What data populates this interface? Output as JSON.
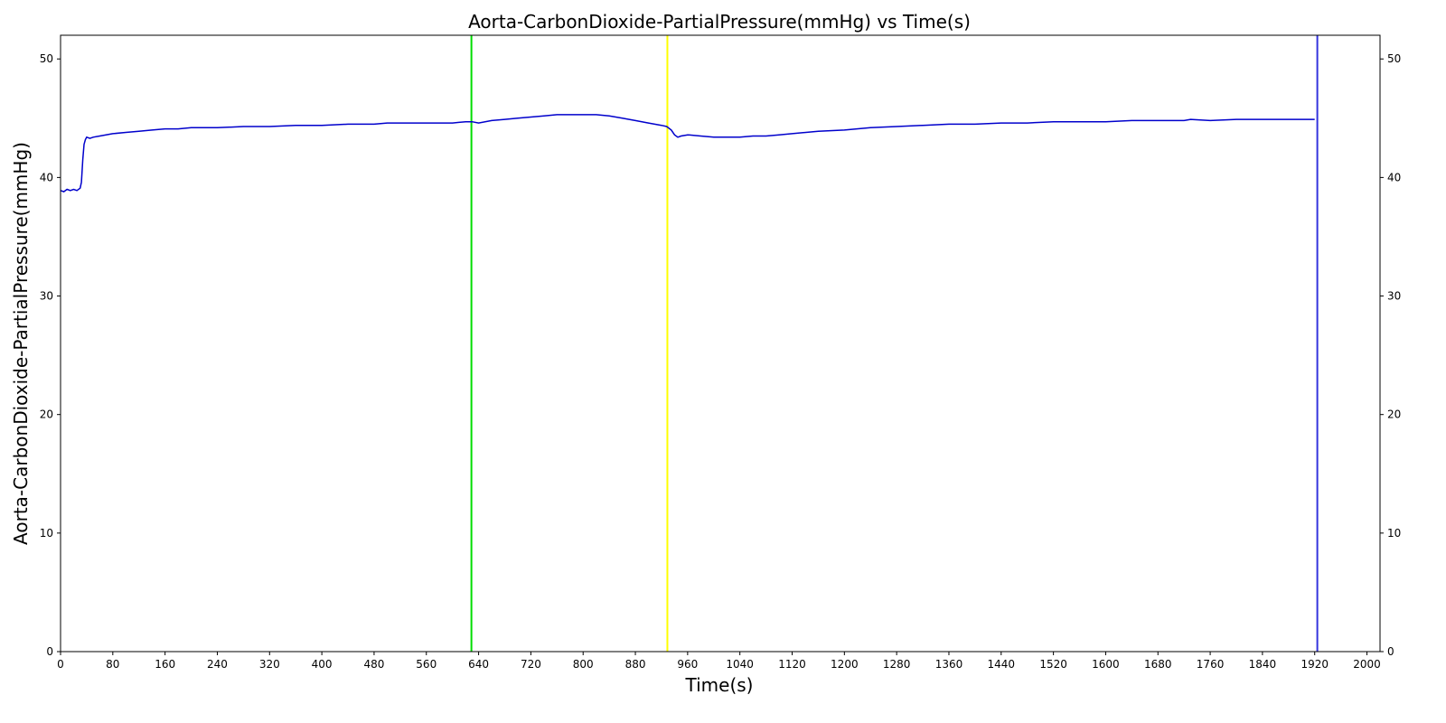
{
  "chart_data": {
    "type": "line",
    "title": "Aorta-CarbonDioxide-PartialPressure(mmHg) vs Time(s)",
    "xlabel": "Time(s)",
    "ylabel": "Aorta-CarbonDioxide-PartialPressure(mmHg)",
    "xlim": [
      0,
      2020
    ],
    "ylim": [
      0,
      52
    ],
    "x_ticks": [
      0,
      80,
      160,
      240,
      320,
      400,
      480,
      560,
      640,
      720,
      800,
      880,
      960,
      1040,
      1120,
      1200,
      1280,
      1360,
      1440,
      1520,
      1600,
      1680,
      1760,
      1840,
      1920,
      2000
    ],
    "y_ticks": [
      0,
      10,
      20,
      30,
      40,
      50
    ],
    "y_right_ticks": [
      0,
      10,
      20,
      30,
      40,
      50
    ],
    "grid": false,
    "series": [
      {
        "color": "#0000cc",
        "x": [
          0,
          5,
          10,
          15,
          20,
          25,
          30,
          32,
          34,
          36,
          38,
          40,
          45,
          50,
          60,
          80,
          100,
          120,
          140,
          160,
          180,
          200,
          240,
          280,
          320,
          360,
          400,
          440,
          480,
          500,
          520,
          560,
          600,
          620,
          630,
          640,
          660,
          680,
          700,
          720,
          740,
          760,
          780,
          800,
          820,
          840,
          860,
          880,
          900,
          920,
          928,
          935,
          940,
          945,
          950,
          960,
          980,
          1000,
          1020,
          1040,
          1060,
          1080,
          1100,
          1120,
          1160,
          1200,
          1240,
          1280,
          1320,
          1360,
          1400,
          1440,
          1480,
          1520,
          1560,
          1600,
          1640,
          1680,
          1720,
          1730,
          1760,
          1800,
          1840,
          1880,
          1920
        ],
        "y": [
          38.9,
          38.8,
          39.0,
          38.9,
          39.0,
          38.9,
          39.1,
          39.6,
          41.5,
          42.8,
          43.2,
          43.4,
          43.3,
          43.4,
          43.5,
          43.7,
          43.8,
          43.9,
          44.0,
          44.1,
          44.1,
          44.2,
          44.2,
          44.3,
          44.3,
          44.4,
          44.4,
          44.5,
          44.5,
          44.6,
          44.6,
          44.6,
          44.6,
          44.7,
          44.7,
          44.6,
          44.8,
          44.9,
          45.0,
          45.1,
          45.2,
          45.3,
          45.3,
          45.3,
          45.3,
          45.2,
          45.0,
          44.8,
          44.6,
          44.4,
          44.3,
          44.0,
          43.6,
          43.4,
          43.5,
          43.6,
          43.5,
          43.4,
          43.4,
          43.4,
          43.5,
          43.5,
          43.6,
          43.7,
          43.9,
          44.0,
          44.2,
          44.3,
          44.4,
          44.5,
          44.5,
          44.6,
          44.6,
          44.7,
          44.7,
          44.7,
          44.8,
          44.8,
          44.8,
          44.9,
          44.8,
          44.9,
          44.9,
          44.9,
          44.9
        ]
      }
    ],
    "vertical_lines": [
      {
        "x": 629,
        "color": "#00dd00"
      },
      {
        "x": 929,
        "color": "#ffff00"
      },
      {
        "x": 1924,
        "color": "#3333dd"
      }
    ]
  }
}
